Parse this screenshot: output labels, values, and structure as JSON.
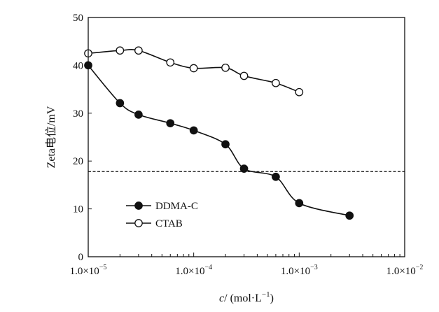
{
  "chart_data": {
    "type": "line",
    "xscale": "log",
    "xlim": [
      1e-05,
      0.01
    ],
    "ylim": [
      0,
      50
    ],
    "x_ticks": [
      1e-05,
      0.0001,
      0.001,
      0.01
    ],
    "x_tick_labels": [
      "1.0×10",
      "1.0×10",
      "1.0×10",
      "1.0×10"
    ],
    "x_tick_exponents": [
      "−5",
      "−4",
      "−3",
      "−2"
    ],
    "y_ticks": [
      0,
      10,
      20,
      30,
      40,
      50
    ],
    "y_tick_labels": [
      "0",
      "10",
      "20",
      "30",
      "40",
      "50"
    ],
    "xlabel": {
      "var": "c",
      "text": "/ (mol·L",
      "sup": "−1",
      "close": ")"
    },
    "ylabel": "Zeta电位/mV",
    "legend_position": "lower-left",
    "grid": false,
    "reference_line": {
      "y": 17.8,
      "style": "dashed"
    },
    "series": [
      {
        "name": "DDMA-C",
        "marker": "filled-circle",
        "x": [
          1e-05,
          2e-05,
          3e-05,
          6e-05,
          0.0001,
          0.0002,
          0.0003,
          0.0006,
          0.001,
          0.003
        ],
        "values": [
          40.0,
          32.1,
          29.7,
          27.9,
          26.4,
          23.5,
          18.4,
          16.7,
          11.2,
          8.6
        ]
      },
      {
        "name": "CTAB",
        "marker": "open-circle",
        "x": [
          1e-05,
          2e-05,
          3e-05,
          6e-05,
          0.0001,
          0.0002,
          0.0003,
          0.0006,
          0.001
        ],
        "values": [
          42.5,
          43.1,
          43.1,
          40.6,
          39.4,
          39.5,
          37.8,
          36.3,
          34.4
        ]
      }
    ]
  }
}
